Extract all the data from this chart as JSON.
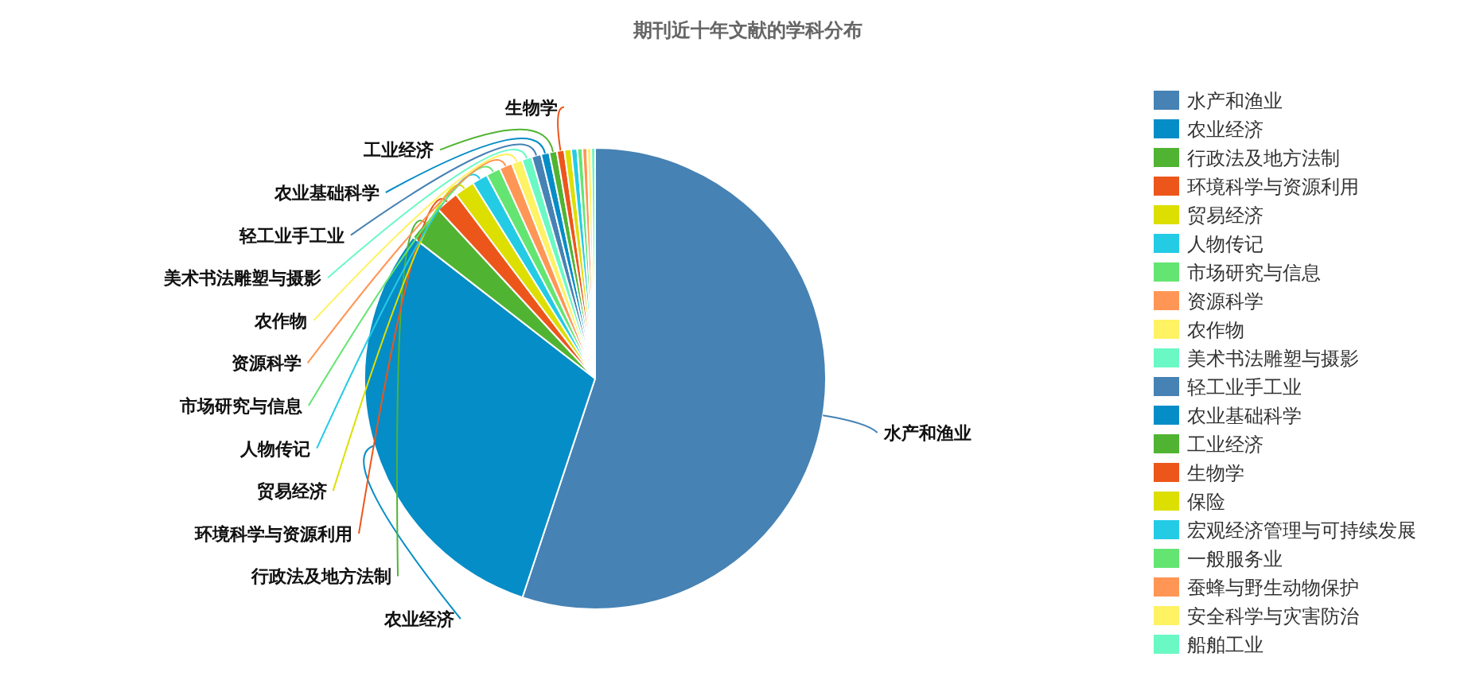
{
  "chart_data": {
    "type": "pie",
    "title": "期刊近十年文献的学科分布",
    "categories": [
      "水产和渔业",
      "农业经济",
      "行政法及地方法制",
      "环境科学与资源利用",
      "贸易经济",
      "人物传记",
      "市场研究与信息",
      "资源科学",
      "农作物",
      "美术书法雕塑与摄影",
      "轻工业手工业",
      "农业基础科学",
      "工业经济",
      "生物学",
      "保险",
      "宏观经济管理与可持续发展",
      "一般服务业",
      "蚕蜂与野生动物保护",
      "安全科学与灾害防治",
      "船舶工业"
    ],
    "values": [
      55.1,
      30.4,
      2.6,
      1.6,
      1.4,
      1.1,
      1.0,
      0.9,
      0.75,
      0.7,
      0.67,
      0.58,
      0.53,
      0.52,
      0.48,
      0.42,
      0.36,
      0.33,
      0.28,
      0.27
    ],
    "colors": [
      "#4682b4",
      "#058dc7",
      "#50b432",
      "#ed561b",
      "#dddf00",
      "#24cbe5",
      "#64e572",
      "#ff9655",
      "#fff263",
      "#6af9c4",
      "#4682b4",
      "#058dc7",
      "#50b432",
      "#ed561b",
      "#dddf00",
      "#24cbe5",
      "#64e572",
      "#ff9655",
      "#fff263",
      "#6af9c4"
    ],
    "legend": "right"
  }
}
